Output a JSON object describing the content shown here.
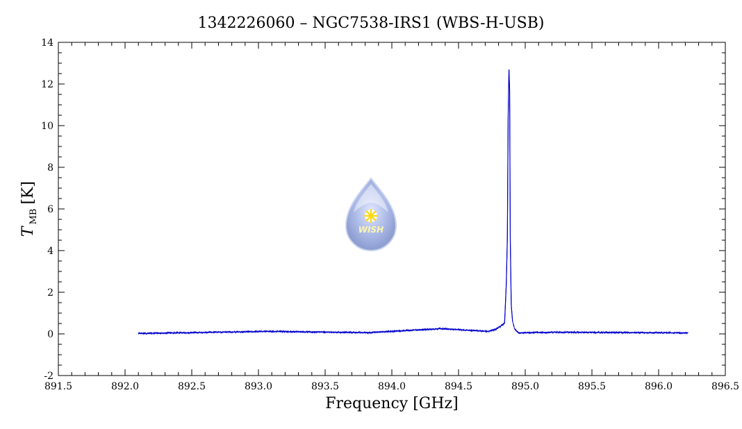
{
  "chart_data": {
    "type": "line",
    "title": "1342226060 – NGC7538-IRS1 (WBS-H-USB)",
    "xlabel": "Frequency [GHz]",
    "ylabel_main": "T",
    "ylabel_sub": "MB",
    "ylabel_unit": "[K]",
    "xlim": [
      891.5,
      896.5
    ],
    "ylim": [
      -2,
      14
    ],
    "x_ticks": [
      "891.5",
      "892.0",
      "892.5",
      "893.0",
      "893.5",
      "894.0",
      "894.5",
      "895.0",
      "895.5",
      "896.0",
      "896.5"
    ],
    "y_ticks": [
      "-2",
      "0",
      "2",
      "4",
      "6",
      "8",
      "10",
      "12",
      "14"
    ],
    "grid": false,
    "series": [
      {
        "color": "#0000cc",
        "x_range": [
          892.1,
          896.22
        ],
        "noise_level": 0.03,
        "points": [
          [
            892.1,
            0.02
          ],
          [
            893.08,
            0.12
          ],
          [
            893.82,
            0.06
          ],
          [
            894.37,
            0.25
          ],
          [
            894.72,
            0.12
          ],
          [
            894.78,
            0.22
          ],
          [
            894.845,
            0.5
          ],
          [
            894.858,
            2.4
          ],
          [
            894.866,
            4.6
          ],
          [
            894.872,
            10.4
          ],
          [
            894.878,
            12.7
          ],
          [
            894.883,
            11.7
          ],
          [
            894.888,
            4.5
          ],
          [
            894.895,
            1.4
          ],
          [
            894.905,
            0.6
          ],
          [
            894.92,
            0.25
          ],
          [
            894.95,
            0.05
          ],
          [
            895.25,
            0.08
          ],
          [
            896.22,
            0.05
          ]
        ]
      }
    ]
  },
  "logo": {
    "text": "WISH",
    "color": "#8fa3d9"
  }
}
